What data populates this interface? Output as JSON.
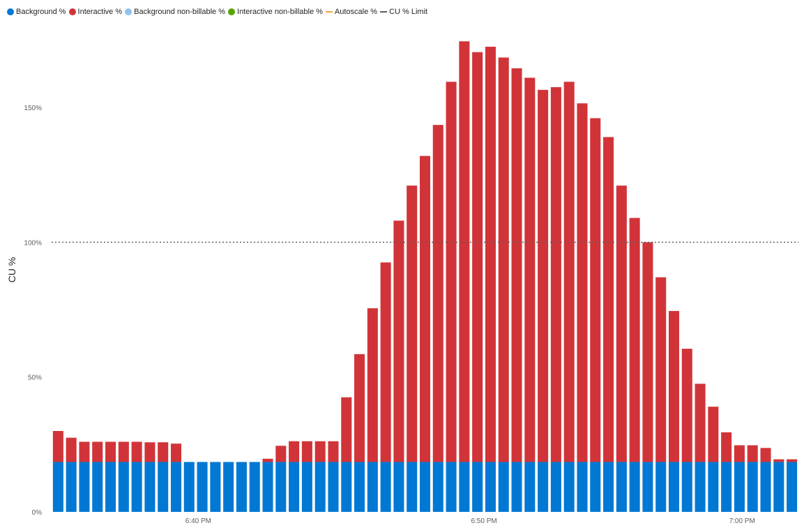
{
  "legend": [
    {
      "label": "Background %",
      "kind": "dot",
      "color": "#0078d4"
    },
    {
      "label": "Interactive %",
      "kind": "dot",
      "color": "#d13438"
    },
    {
      "label": "Background non-billable %",
      "kind": "dot",
      "color": "#8fc2ee"
    },
    {
      "label": "Interactive non-billable %",
      "kind": "dot",
      "color": "#57a300"
    },
    {
      "label": "Autoscale %",
      "kind": "line",
      "color": "#f2a93b"
    },
    {
      "label": "CU % Limit",
      "kind": "line",
      "color": "#605e5c"
    }
  ],
  "chart_data": {
    "type": "bar",
    "stacked": true,
    "ylabel": "CU %",
    "ylim": [
      0,
      180
    ],
    "yticks": [
      0,
      50,
      100,
      150
    ],
    "ytick_labels": [
      "0%",
      "50%",
      "100%",
      "150%"
    ],
    "x_tick_labels": [
      {
        "label": "6:40 PM",
        "index": 10.7
      },
      {
        "label": "6:50 PM",
        "index": 32.5
      },
      {
        "label": "7:00 PM",
        "index": 52.2
      }
    ],
    "limit": 100,
    "limit_color": "#605e5c",
    "series": [
      {
        "name": "Background %",
        "color": "#0078d4",
        "values": [
          18.5,
          18.5,
          18.5,
          18.5,
          18.5,
          18.5,
          18.5,
          18.5,
          18.5,
          18.5,
          18.5,
          18.5,
          18.5,
          18.5,
          18.5,
          18.5,
          18.5,
          18.5,
          18.5,
          18.5,
          18.5,
          18.5,
          18.5,
          18.5,
          18.5,
          18.5,
          18.5,
          18.5,
          18.5,
          18.5,
          18.5,
          18.5,
          18.5,
          18.5,
          18.5,
          18.5,
          18.5,
          18.5,
          18.5,
          18.5,
          18.5,
          18.5,
          18.5,
          18.5,
          18.5,
          18.5,
          18.5,
          18.5,
          18.5,
          18.5,
          18.5,
          18.5,
          18.5,
          18.5,
          18.5,
          18.5,
          18.5
        ]
      },
      {
        "name": "Interactive %",
        "color": "#d13438",
        "values": [
          11.5,
          9,
          7.5,
          7.5,
          7.5,
          7.5,
          7.5,
          7.3,
          7.3,
          6.8,
          0,
          0,
          0,
          0,
          0,
          0,
          1.2,
          6,
          7.7,
          7.7,
          7.7,
          7.7,
          24,
          40,
          57,
          74,
          89.5,
          102.5,
          113.5,
          125,
          141,
          156,
          152,
          154,
          150,
          146,
          142.5,
          138,
          139,
          141,
          133,
          127.5,
          120.5,
          102.5,
          90.5,
          81.5,
          68.5,
          56,
          42,
          29,
          20.5,
          11,
          6.2,
          6.2,
          5.2,
          1,
          1
        ]
      }
    ]
  }
}
